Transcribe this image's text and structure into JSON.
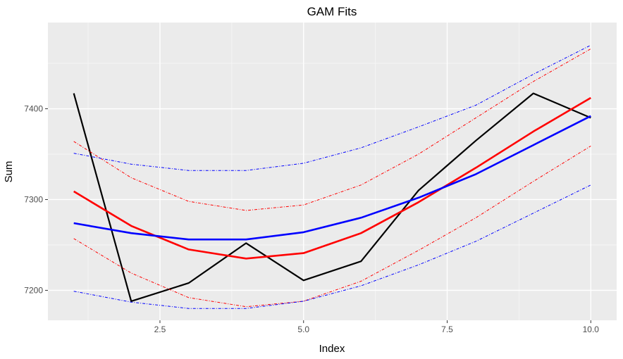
{
  "chart_data": {
    "type": "line",
    "title": "GAM Fits",
    "xlabel": "Index",
    "ylabel": "Sum",
    "xlim": [
      0.55,
      10.45
    ],
    "ylim": [
      7167,
      7495
    ],
    "x_ticks": [
      2.5,
      5.0,
      7.5,
      10.0
    ],
    "x_tick_labels": [
      "2.5",
      "5.0",
      "7.5",
      "10.0"
    ],
    "y_ticks": [
      7200,
      7300,
      7400
    ],
    "y_tick_labels": [
      "7200",
      "7300",
      "7400"
    ],
    "grid": true,
    "background": "#ebebeb",
    "grid_major_color": "#ffffff",
    "x": [
      1,
      2,
      3,
      4,
      5,
      6,
      7,
      8,
      9,
      10
    ],
    "series": [
      {
        "color": "#000000",
        "style": "solid",
        "width": 2.2,
        "values": [
          7417,
          7188,
          7208,
          7252,
          7211,
          7232,
          7310,
          7365,
          7417,
          7390
        ]
      },
      {
        "color": "#ff0000",
        "style": "solid",
        "width": 2.6,
        "values": [
          7309,
          7271,
          7245,
          7235,
          7241,
          7263,
          7297,
          7335,
          7375,
          7412
        ]
      },
      {
        "color": "#ff0000",
        "style": "dashdot",
        "width": 1,
        "values": [
          7364,
          7324,
          7298,
          7288,
          7294,
          7316,
          7350,
          7390,
          7430,
          7466
        ]
      },
      {
        "color": "#ff0000",
        "style": "dashdot",
        "width": 1,
        "values": [
          7257,
          7219,
          7192,
          7182,
          7188,
          7210,
          7244,
          7280,
          7320,
          7359
        ]
      },
      {
        "color": "#0000ff",
        "style": "solid",
        "width": 2.6,
        "values": [
          7274,
          7263,
          7256,
          7256,
          7264,
          7280,
          7302,
          7328,
          7360,
          7392
        ]
      },
      {
        "color": "#0000ff",
        "style": "dashdot",
        "width": 1,
        "values": [
          7351,
          7339,
          7332,
          7332,
          7340,
          7357,
          7380,
          7404,
          7438,
          7470
        ]
      },
      {
        "color": "#0000ff",
        "style": "dashdot",
        "width": 1,
        "values": [
          7199,
          7187,
          7180,
          7180,
          7188,
          7205,
          7228,
          7254,
          7285,
          7316
        ]
      }
    ]
  }
}
